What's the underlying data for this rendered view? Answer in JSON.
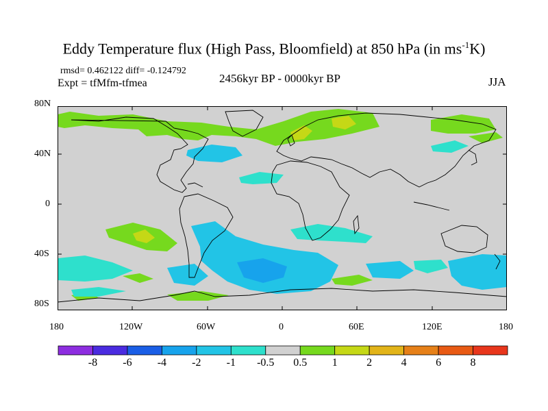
{
  "title": {
    "main": "Eddy Temperature flux (High Pass, Bloomfield) at 850 hPa (in ms",
    "sup": "-1",
    "tail": "K)"
  },
  "stats": "rmsd= 0.462122 diff= -0.124792",
  "expt": "Expt = tfMfm-tfmea",
  "period": "2456kyr BP - 0000kyr BP",
  "season": "JJA",
  "y_ticks": [
    "80N",
    "40N",
    "0",
    "40S",
    "80S"
  ],
  "x_ticks": [
    "180",
    "120W",
    "60W",
    "0",
    "60E",
    "120E",
    "180"
  ],
  "colorbar": {
    "labels": [
      "-8",
      "-6",
      "-4",
      "-2",
      "-1",
      "-0.5",
      "0.5",
      "1",
      "2",
      "4",
      "6",
      "8"
    ],
    "colors": [
      "#8d2de0",
      "#4a2be0",
      "#1a5ee6",
      "#17a3ec",
      "#22c4e6",
      "#2ee0cc",
      "#d1d1d1",
      "#76d91e",
      "#c5d816",
      "#e2b419",
      "#e68018",
      "#e85a14",
      "#e8361c"
    ]
  },
  "map_colors": {
    "background": "#d1d1d1",
    "cyan_light": "#2ee0cc",
    "cyan": "#22c4e6",
    "blue": "#17a3ec",
    "green": "#76d91e",
    "yellow": "#c5d816",
    "orange": "#e2b419"
  }
}
